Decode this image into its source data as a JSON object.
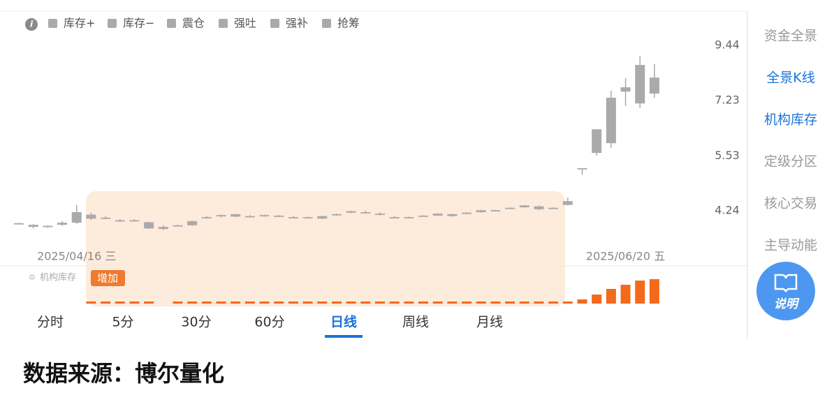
{
  "chart_data": {
    "type": "candlestick",
    "legend": [
      "库存+",
      "库存−",
      "震仓",
      "强吐",
      "强补",
      "抢筹"
    ],
    "legend_color": "#aaaaaa",
    "categories": [
      null,
      null,
      null,
      null,
      "2025/04/16 三",
      null,
      null,
      null,
      null,
      null,
      null,
      null,
      null,
      null,
      null,
      null,
      null,
      null,
      null,
      null,
      null,
      null,
      null,
      null,
      null,
      null,
      null,
      null,
      null,
      null,
      null,
      null,
      null,
      null,
      null,
      null,
      null,
      null,
      null,
      null,
      null,
      null,
      "2025/06/20 五",
      null,
      null
    ],
    "open": [
      3.99,
      3.96,
      3.93,
      3.96,
      4.0,
      4.16,
      4.1,
      4.05,
      4.04,
      4.01,
      3.92,
      3.94,
      3.95,
      4.1,
      4.13,
      4.12,
      4.13,
      4.13,
      4.14,
      4.11,
      4.1,
      4.08,
      4.15,
      4.2,
      4.21,
      4.18,
      4.11,
      4.11,
      4.13,
      4.14,
      4.17,
      4.18,
      4.21,
      4.24,
      4.29,
      4.31,
      4.33,
      4.3,
      4.36,
      5.21,
      5.61,
      5.88,
      7.55,
      7.13,
      8.08
    ],
    "high": [
      4.0,
      3.97,
      3.95,
      4.03,
      4.36,
      4.2,
      4.13,
      4.07,
      4.07,
      4.02,
      3.95,
      3.96,
      4.04,
      4.13,
      4.16,
      4.18,
      4.15,
      4.16,
      4.15,
      4.13,
      4.12,
      4.14,
      4.18,
      4.24,
      4.24,
      4.21,
      4.13,
      4.12,
      4.15,
      4.19,
      4.18,
      4.21,
      4.26,
      4.26,
      4.31,
      4.36,
      4.35,
      4.31,
      4.52,
      5.21,
      6.29,
      7.58,
      8.05,
      8.97,
      8.62
    ],
    "low": [
      3.97,
      3.89,
      3.9,
      3.94,
      3.98,
      4.05,
      4.07,
      4.01,
      4.02,
      3.88,
      3.86,
      3.93,
      3.94,
      4.08,
      4.1,
      4.11,
      4.1,
      4.12,
      4.11,
      4.09,
      4.09,
      4.07,
      4.14,
      4.19,
      4.18,
      4.14,
      4.09,
      4.09,
      4.12,
      4.13,
      4.12,
      4.17,
      4.2,
      4.23,
      4.28,
      4.3,
      4.25,
      4.29,
      4.35,
      5.04,
      5.54,
      5.75,
      7.04,
      6.97,
      7.33
    ],
    "close": [
      3.98,
      3.92,
      3.94,
      4.0,
      4.21,
      4.08,
      4.1,
      4.04,
      4.05,
      3.89,
      3.88,
      3.95,
      4.03,
      4.11,
      4.15,
      4.17,
      4.13,
      4.15,
      4.13,
      4.11,
      4.11,
      4.13,
      4.17,
      4.23,
      4.2,
      4.16,
      4.11,
      4.11,
      4.14,
      4.18,
      4.13,
      4.2,
      4.25,
      4.25,
      4.3,
      4.35,
      4.27,
      4.3,
      4.44,
      5.21,
      6.29,
      7.33,
      7.71,
      8.59,
      7.48
    ],
    "color": "#aaaaaa",
    "log_scale": true,
    "ylim": [
      3.3,
      11.0
    ],
    "yticks": [
      9.44,
      7.23,
      5.53,
      4.24
    ],
    "inventory": {
      "title": "机构库存",
      "tag": "增加",
      "color": "#f26a1b",
      "values": [
        null,
        null,
        null,
        null,
        null,
        0,
        0,
        0,
        0,
        0,
        null,
        0,
        0,
        0,
        0,
        0,
        0,
        0,
        0,
        0,
        0,
        0,
        0,
        0,
        0,
        0,
        0,
        0,
        0,
        0,
        0,
        0,
        0,
        0,
        0,
        0,
        0,
        0,
        0,
        6,
        13,
        21,
        27,
        33,
        35
      ]
    }
  },
  "tabs": [
    "分时",
    "5分",
    "30分",
    "60分",
    "日线",
    "周线",
    "月线"
  ],
  "active_tab": 4,
  "sidebar": [
    {
      "label": "资金全景",
      "color": "#999999"
    },
    {
      "label": "全景K线",
      "color": "#1a73d9"
    },
    {
      "label": "机构库存",
      "color": "#1a73d9"
    },
    {
      "label": "定级分区",
      "color": "#999999"
    },
    {
      "label": "核心交易",
      "color": "#999999"
    },
    {
      "label": "主导动能",
      "color": "#999999"
    }
  ],
  "help_button": "说明",
  "footer": "数据来源：博尔量化"
}
